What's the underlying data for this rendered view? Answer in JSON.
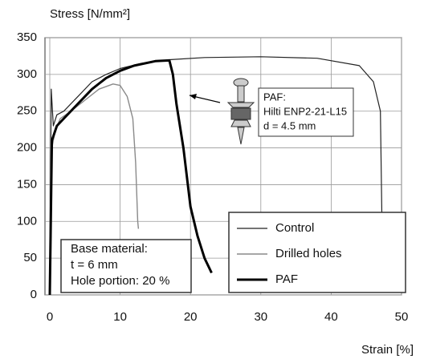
{
  "chart_data": {
    "type": "line",
    "ylabel": "Stress [N/mm²]",
    "xlabel": "Strain [%]",
    "xlim": [
      0,
      50
    ],
    "xticks": [
      0,
      10,
      20,
      30,
      40,
      50
    ],
    "ylim": [
      0,
      350
    ],
    "yticks": [
      0,
      50,
      100,
      150,
      200,
      250,
      300,
      350
    ],
    "grid": true,
    "legend": "lower right",
    "series": [
      {
        "name": "Control",
        "color": "#222222",
        "width": 1.2,
        "x": [
          0,
          0.2,
          0.5,
          1,
          2,
          4,
          6,
          8,
          10,
          13,
          17,
          22,
          30,
          38,
          44,
          46,
          47,
          47.2
        ],
        "values": [
          0,
          280,
          230,
          245,
          250,
          270,
          290,
          300,
          308,
          315,
          320,
          323,
          324,
          322,
          312,
          290,
          250,
          110
        ]
      },
      {
        "name": "Drilled holes",
        "color": "#8a8a8a",
        "width": 1.4,
        "x": [
          0,
          0.3,
          0.8,
          1.5,
          3,
          5,
          7,
          9,
          10,
          11,
          11.8,
          12.2,
          12.5,
          12.6
        ],
        "values": [
          0,
          200,
          225,
          240,
          250,
          265,
          280,
          287,
          285,
          270,
          240,
          180,
          100,
          90
        ]
      },
      {
        "name": "PAF",
        "color": "#000000",
        "width": 3,
        "x": [
          0,
          0.3,
          1,
          2,
          4,
          6,
          8,
          10,
          12,
          15,
          17,
          17.5,
          18,
          19,
          20,
          21,
          22,
          23
        ],
        "values": [
          0,
          210,
          230,
          240,
          260,
          280,
          295,
          305,
          312,
          318,
          319,
          300,
          260,
          200,
          120,
          80,
          50,
          30
        ]
      }
    ],
    "annotation": [
      "PAF:",
      "Hilti ENP2-21-L15",
      "d = 4.5 mm"
    ],
    "info_box": [
      "Base material:",
      "t = 6 mm",
      "Hole portion: 20 %"
    ]
  }
}
